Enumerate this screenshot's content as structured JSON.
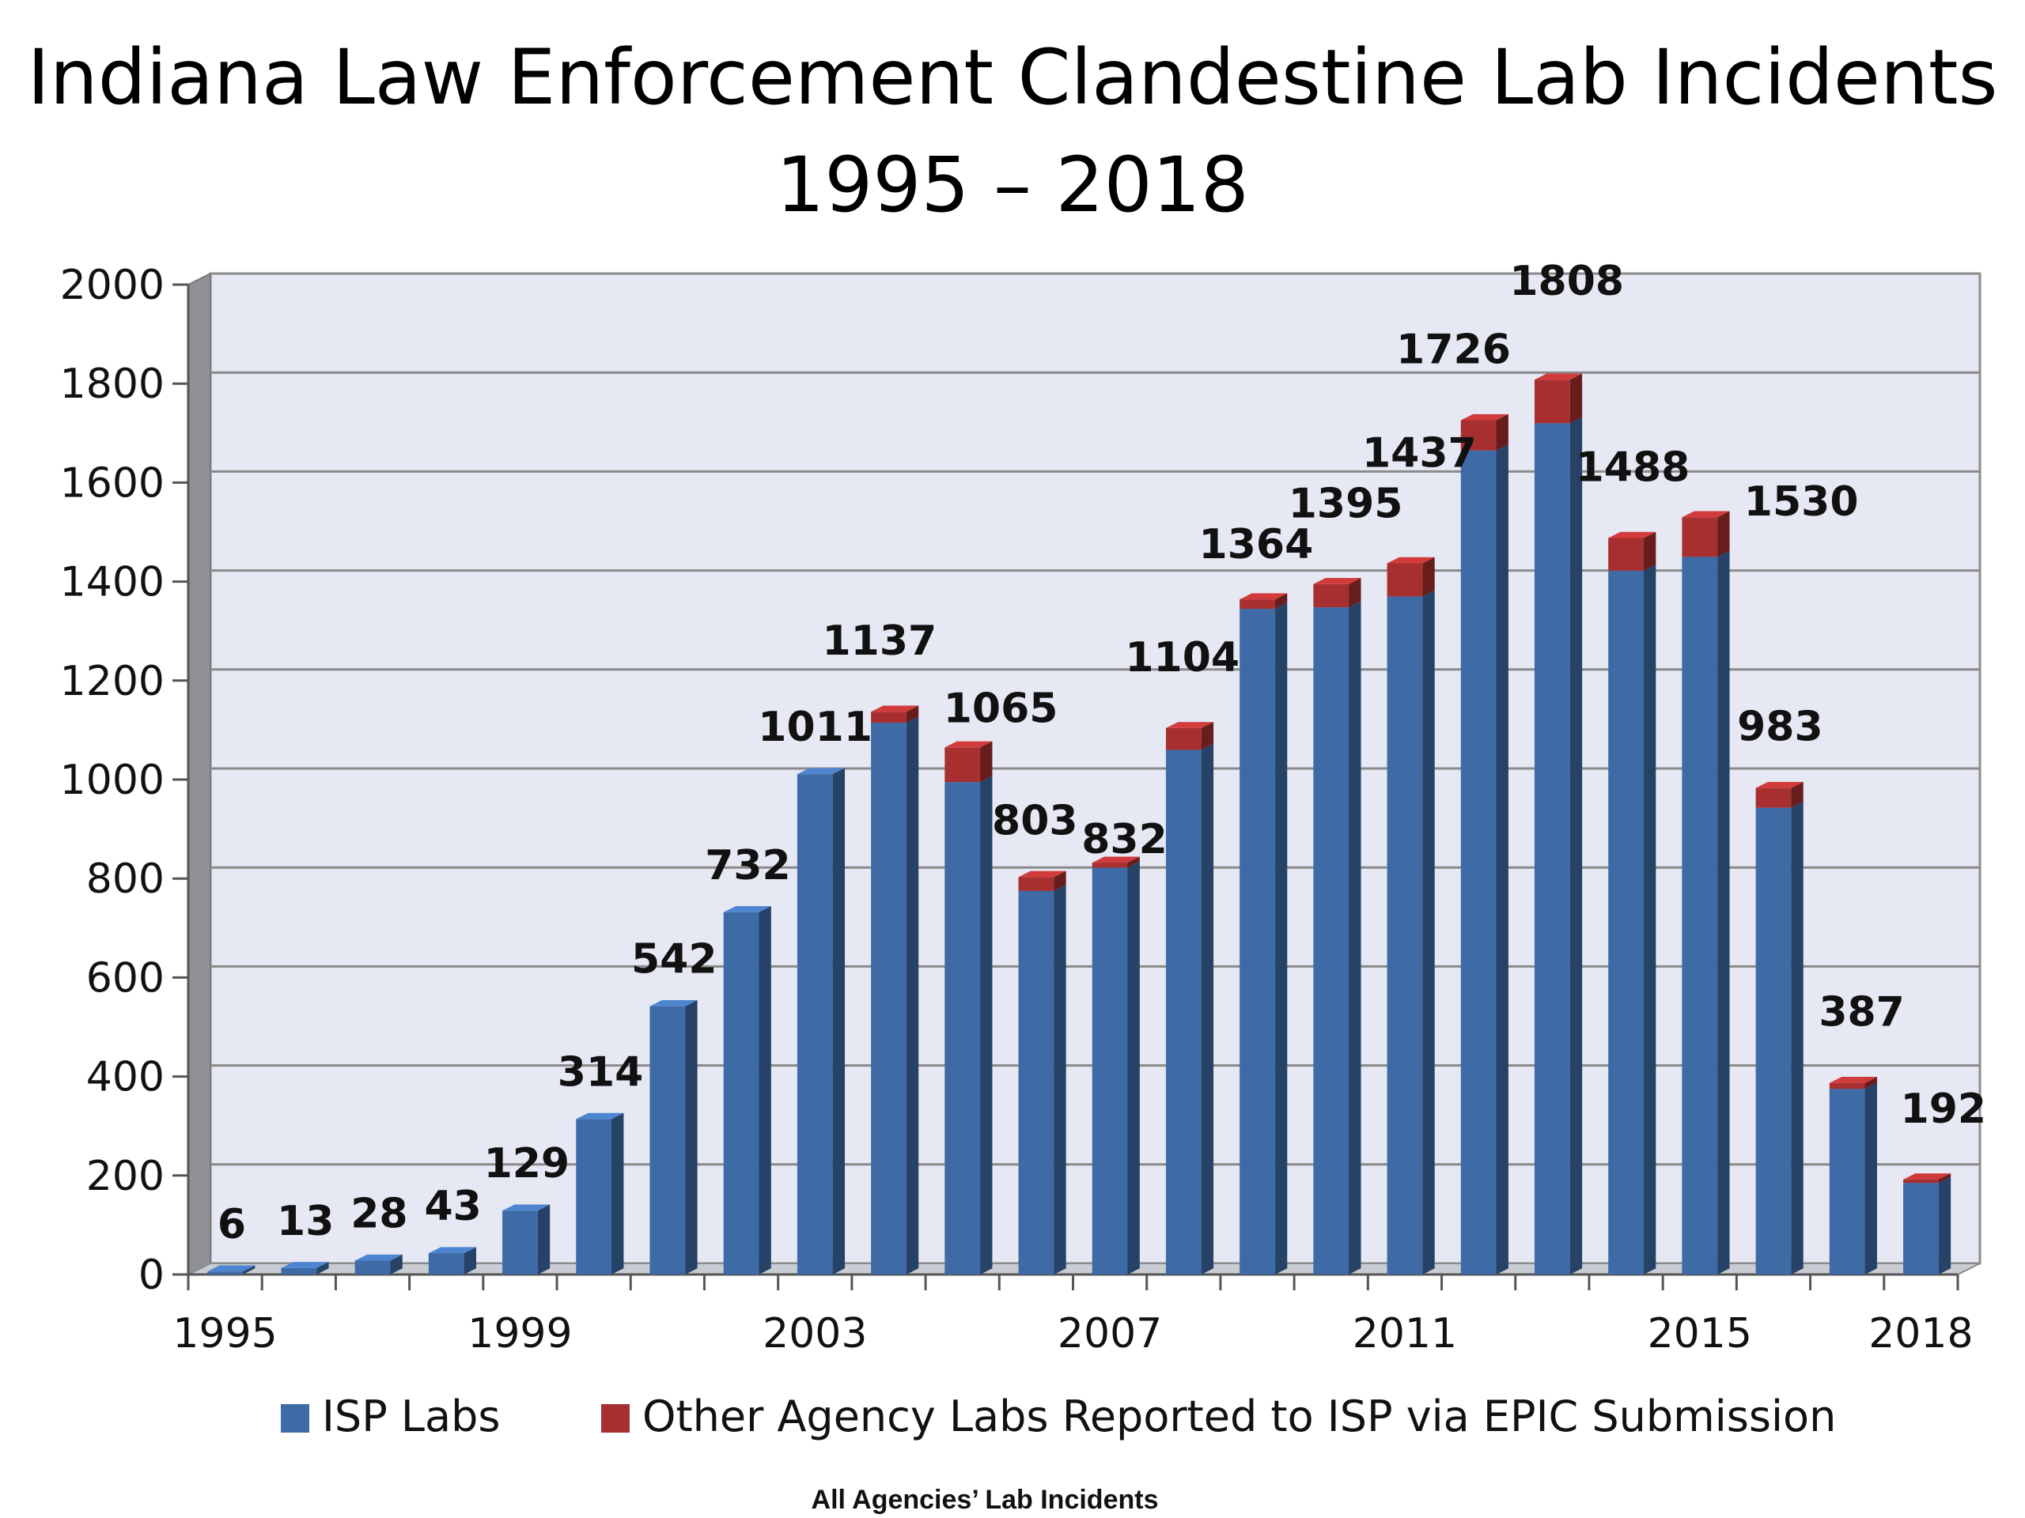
{
  "chart_data": {
    "type": "bar",
    "stacked": true,
    "title": "Indiana Law Enforcement Clandestine Lab Incidents",
    "subtitle": "1995 – 2018",
    "categories": [
      "1995",
      "1996",
      "1997",
      "1998",
      "1999",
      "2000",
      "2001",
      "2002",
      "2003",
      "2004",
      "2005",
      "2006",
      "2007",
      "2008",
      "2009",
      "2010",
      "2011",
      "2012",
      "2013",
      "2014",
      "2015",
      "2016",
      "2017",
      "2018"
    ],
    "x_tick_labels": [
      "1995",
      "1999",
      "2003",
      "2007",
      "2011",
      "2015",
      "2018"
    ],
    "series": [
      {
        "name": "ISP Labs",
        "color": "#3e6aa6",
        "values": [
          6,
          13,
          28,
          43,
          129,
          314,
          542,
          732,
          1011,
          1115,
          995,
          775,
          822,
          1060,
          1345,
          1348,
          1370,
          1665,
          1720,
          1422,
          1450,
          943,
          375,
          185
        ]
      },
      {
        "name": "Other Agency Labs Reported to ISP via EPIC Submission",
        "color": "#a82f2f",
        "values": [
          0,
          0,
          0,
          0,
          0,
          0,
          0,
          0,
          0,
          22,
          70,
          28,
          10,
          44,
          19,
          47,
          67,
          61,
          88,
          66,
          80,
          40,
          12,
          7
        ]
      }
    ],
    "totals": [
      6,
      13,
      28,
      43,
      129,
      314,
      542,
      732,
      1011,
      1137,
      1065,
      803,
      832,
      1104,
      1364,
      1395,
      1437,
      1726,
      1808,
      1488,
      1530,
      983,
      387,
      192
    ],
    "y_ticks": [
      "0",
      "200",
      "400",
      "600",
      "800",
      "1000",
      "1200",
      "1400",
      "1600",
      "1800",
      "2000"
    ],
    "ylim": [
      0,
      2000
    ],
    "grid": true,
    "legend_position": "bottom",
    "footnote": "All Agencies’ Lab Incidents"
  }
}
